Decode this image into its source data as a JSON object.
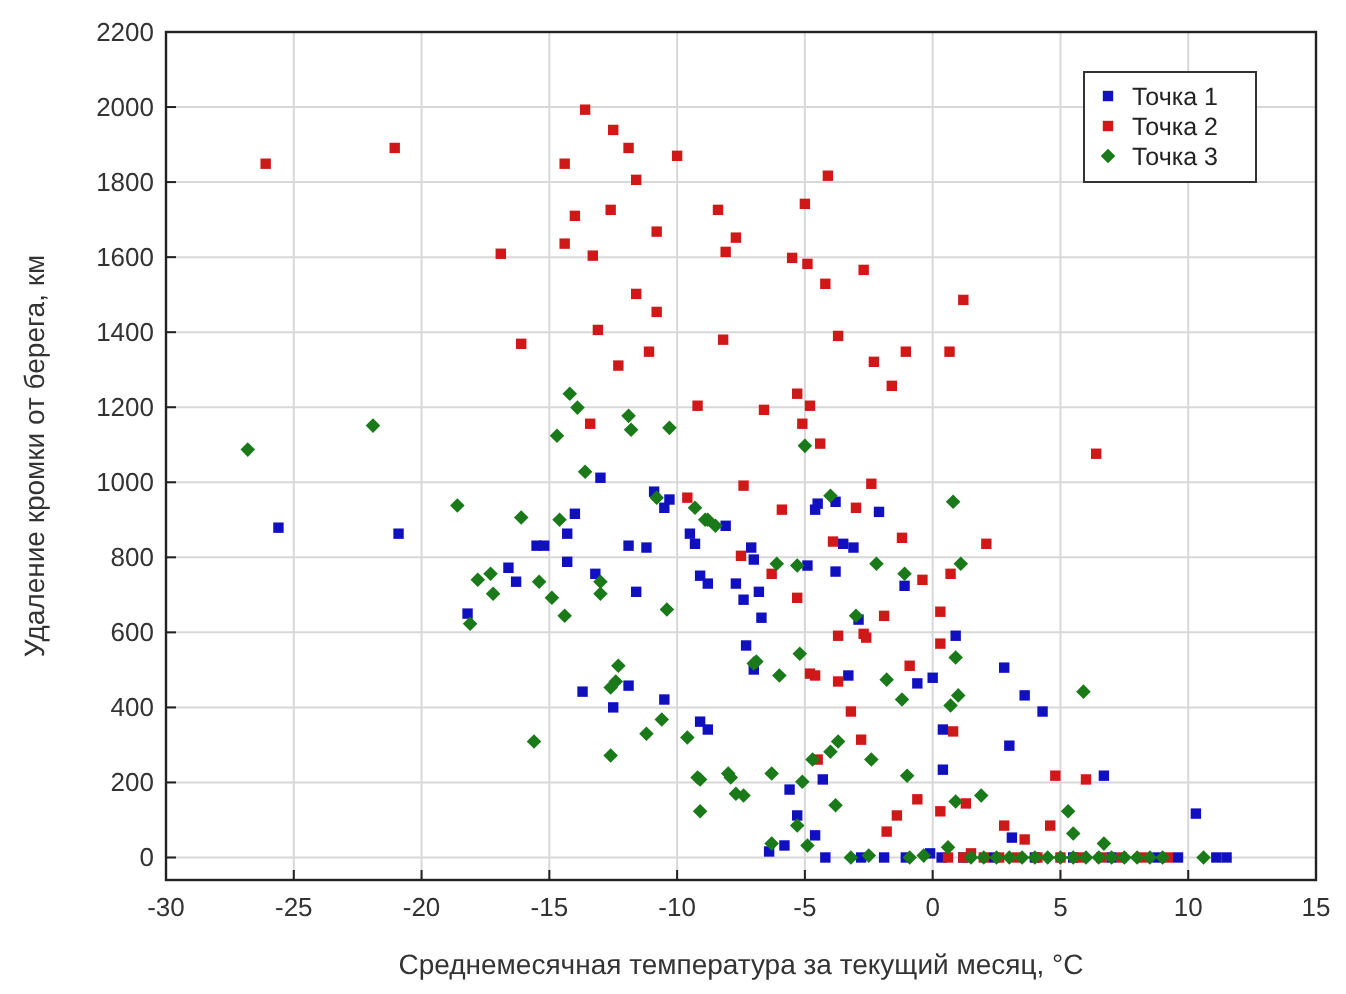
{
  "chart_data": {
    "type": "scatter",
    "xlabel": "Среднемесячная температура за текущий месяц, °C",
    "ylabel": "Удаление кромки от берега, км",
    "xlim": [
      -30,
      15
    ],
    "ylim": [
      -60,
      2200
    ],
    "xticks": [
      -30,
      -25,
      -20,
      -15,
      -10,
      -5,
      0,
      5,
      10,
      15
    ],
    "yticks": [
      0,
      200,
      400,
      600,
      800,
      1000,
      1200,
      1400,
      1600,
      1800,
      2000,
      2200
    ],
    "grid": true,
    "legend": "top right",
    "series": [
      {
        "name": "Точка 1",
        "color": "#1010c0",
        "marker": "square",
        "x": [
          -25.6,
          -20.9,
          -13,
          -10.9,
          -10.5,
          -10.3,
          -14,
          -14.3,
          -15.5,
          -15.2,
          -14.3,
          -16.6,
          -16.3,
          -18.2,
          -13.2,
          -11.6,
          -11.9,
          -11.2,
          -8.1,
          -9.5,
          -9.3,
          -9.1,
          -8.8,
          -7.7,
          -7.4,
          -7.1,
          -7,
          -7.3,
          -7,
          -13.7,
          -11.9,
          -12.5,
          -10.5,
          -9.1,
          -8.8,
          -6.8,
          -6.7,
          -4.6,
          -4.5,
          -3.8,
          -3.5,
          -3.1,
          -3.8,
          -4.9,
          -2.1,
          -1.1,
          -2.9,
          0.9,
          -3.3,
          -0.6,
          0,
          2.8,
          3.6,
          4.3,
          0.4,
          3,
          0.4,
          6.7,
          -4.3,
          -5.6,
          -5.3,
          -4.6,
          -6.4,
          -5.8,
          10.3,
          3.1,
          -4.2,
          -2.8,
          -1.9,
          -1.05,
          -0.1,
          0.35,
          1.2,
          2.4,
          4,
          5.5,
          7,
          8.8,
          9.6,
          11.1,
          11.5
        ],
        "values": [
          879,
          863,
          1012,
          975,
          932,
          954,
          916,
          863,
          831,
          831,
          788,
          772,
          735,
          650,
          756,
          708,
          831,
          826,
          884,
          863,
          836,
          751,
          730,
          730,
          687,
          826,
          794,
          565,
          501,
          442,
          458,
          400,
          421,
          362,
          341,
          708,
          639,
          927,
          943,
          948,
          836,
          826,
          762,
          778,
          921,
          724,
          634,
          591,
          485,
          464,
          479,
          506,
          432,
          389,
          341,
          298,
          234,
          218,
          208,
          181,
          112,
          59,
          16,
          32,
          117,
          53,
          0,
          0,
          0,
          0,
          11,
          0,
          0,
          0,
          0,
          0,
          0,
          0,
          0,
          0,
          0
        ]
      },
      {
        "name": "Точка 2",
        "color": "#d01818",
        "marker": "square",
        "x": [
          -26.1,
          -21.05,
          -13.6,
          -12.5,
          -11.9,
          -10,
          -14.4,
          -11.6,
          -14,
          -12.6,
          -8.4,
          -10.8,
          -7.7,
          -8.1,
          -16.9,
          -14.4,
          -13.3,
          -11.6,
          -10.8,
          -13.1,
          -8.2,
          -16.1,
          -11.1,
          -12.3,
          -9.2,
          -13.4,
          -4.1,
          -5,
          -5.5,
          -4.9,
          -2.7,
          -4.2,
          1.2,
          -3.7,
          -1.05,
          -2.3,
          0.66,
          -1.6,
          -6.6,
          -5.3,
          -4.8,
          -5.1,
          -4.4,
          6.4,
          -9.6,
          -7.4,
          -2.4,
          -5.9,
          -3,
          -3.9,
          -1.2,
          2.1,
          -7.5,
          -6.3,
          -0.4,
          0.7,
          -5.3,
          -1.9,
          0.3,
          -3.7,
          -2.7,
          -2.6,
          0.3,
          -0.9,
          -4.8,
          -4.6,
          -3.7,
          -3.2,
          -2.8,
          0.8,
          -4.5,
          4.8,
          6,
          -0.6,
          0.3,
          1.3,
          -1.4,
          -1.8,
          2.8,
          3.6,
          4.6,
          1.5,
          0.6,
          1.2,
          2,
          2.6,
          3.3,
          4.1,
          5,
          5.8,
          6.6,
          7.4,
          8.2,
          9.2
        ],
        "values": [
          1849,
          1891,
          1993,
          1939,
          1891,
          1870,
          1849,
          1806,
          1710,
          1726,
          1726,
          1668,
          1652,
          1614,
          1609,
          1636,
          1604,
          1502,
          1454,
          1406,
          1380,
          1369,
          1348,
          1311,
          1204,
          1156,
          1817,
          1742,
          1598,
          1582,
          1566,
          1529,
          1486,
          1390,
          1348,
          1321,
          1348,
          1257,
          1193,
          1236,
          1204,
          1156,
          1103,
          1076,
          959,
          991,
          996,
          927,
          932,
          842,
          852,
          836,
          804,
          756,
          740,
          756,
          692,
          644,
          655,
          591,
          596,
          586,
          570,
          511,
          490,
          485,
          469,
          389,
          314,
          336,
          261,
          218,
          208,
          155,
          123,
          144,
          112,
          69,
          85,
          48,
          85,
          11,
          0,
          0,
          0,
          0,
          0,
          0,
          0,
          0,
          0,
          0,
          0,
          0
        ]
      },
      {
        "name": "Точка 3",
        "color": "#1a7a1a",
        "marker": "diamond",
        "x": [
          -14.2,
          -13.9,
          -11.9,
          -11.8,
          -10.3,
          -14.7,
          -21.9,
          -26.8,
          -13.6,
          -10.8,
          -9.3,
          -8.9,
          -8.8,
          -8.5,
          -18.6,
          -16.1,
          -14.6,
          -17.3,
          -17.8,
          -17.2,
          -15.4,
          -14.9,
          -14.4,
          -18.1,
          -13,
          -13,
          -10.4,
          -12.3,
          -12.4,
          -12.6,
          -15.6,
          -12.6,
          -11.2,
          -10.6,
          -9.6,
          -9.2,
          -9.1,
          -8,
          -7.9,
          -7.7,
          -7.4,
          -9.1,
          -7,
          -5,
          -4,
          -6.1,
          -5.3,
          -2.2,
          -1.1,
          0.8,
          1.1,
          -3,
          -5.2,
          -6.9,
          -6,
          -1.8,
          -1.2,
          0.9,
          1,
          0.7,
          5.9,
          -3.7,
          -4,
          -4.7,
          -2.4,
          -1,
          -6.3,
          -5.1,
          -3.8,
          -5.3,
          -4.9,
          -6.3,
          0.9,
          1.9,
          5.3,
          5.5,
          6.7,
          -3.2,
          -2.5,
          -0.35,
          0.6,
          -0.9,
          10.6,
          1.5,
          2,
          2.5,
          3,
          3.5,
          4,
          4.5,
          5,
          5.5,
          6,
          6.5,
          7,
          7.5,
          8,
          8.5,
          9
        ],
        "values": [
          1236,
          1199,
          1177,
          1140,
          1145,
          1124,
          1151,
          1087,
          1028,
          959,
          932,
          900,
          900,
          884,
          938,
          906,
          900,
          756,
          740,
          703,
          735,
          692,
          644,
          623,
          735,
          703,
          661,
          511,
          469,
          453,
          309,
          272,
          330,
          368,
          320,
          213,
          208,
          224,
          213,
          170,
          165,
          123,
          517,
          1097,
          964,
          783,
          778,
          783,
          756,
          948,
          783,
          644,
          543,
          522,
          485,
          474,
          421,
          533,
          432,
          405,
          442,
          309,
          282,
          261,
          261,
          218,
          224,
          202,
          139,
          85,
          32,
          37,
          149,
          165,
          123,
          64,
          37,
          0,
          5,
          5,
          27,
          0,
          0,
          0,
          0,
          0,
          0,
          0,
          0,
          0,
          0,
          0,
          0,
          0,
          0,
          0,
          0,
          0,
          0
        ]
      }
    ]
  }
}
